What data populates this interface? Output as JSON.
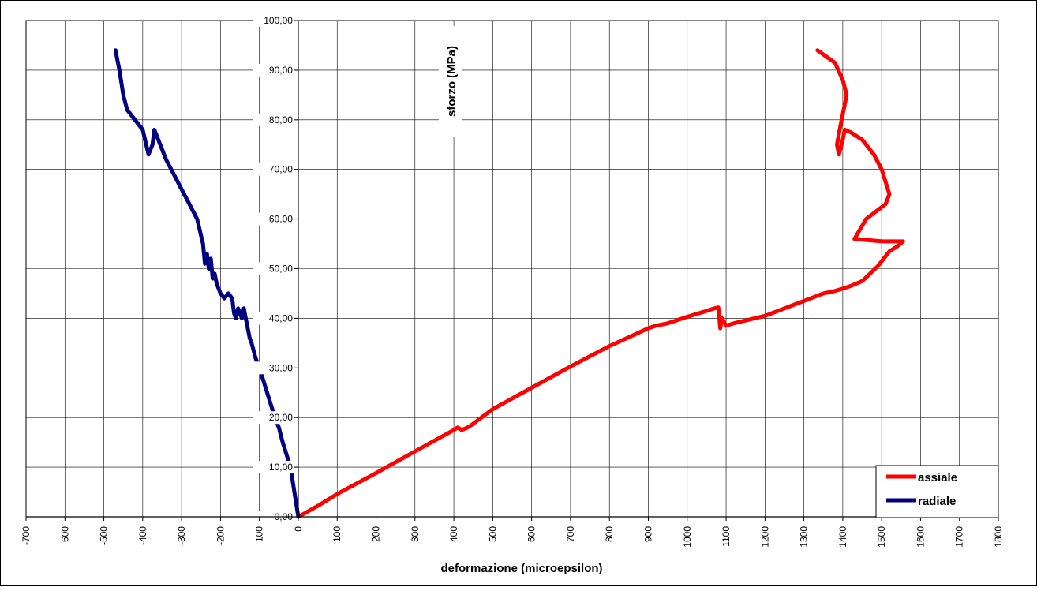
{
  "chart_data": {
    "type": "scatter",
    "xlabel": "deformazione (microepsilon)",
    "ylabel": "sforzo (MPa)",
    "xlim": [
      -700,
      1800
    ],
    "ylim": [
      0,
      100
    ],
    "x_ticks": [
      -700,
      -600,
      -500,
      -400,
      -300,
      -200,
      -100,
      0,
      100,
      200,
      300,
      400,
      500,
      600,
      700,
      800,
      900,
      1000,
      1100,
      1200,
      1300,
      1400,
      1500,
      1600,
      1700,
      1800
    ],
    "x_tick_labels": [
      "-700",
      "-600",
      "-500",
      "-400",
      "-300",
      "-200",
      "-100",
      "0",
      "100",
      "200",
      "300",
      "400",
      "500",
      "600",
      "700",
      "800",
      "900",
      "1000",
      "1100",
      "1200",
      "1300",
      "1400",
      "1500",
      "1600",
      "1700",
      "1800"
    ],
    "y_ticks": [
      0,
      10,
      20,
      30,
      40,
      50,
      60,
      70,
      80,
      90,
      100
    ],
    "y_tick_labels": [
      "0,00",
      "10,00",
      "20,00",
      "30,00",
      "40,00",
      "50,00",
      "60,00",
      "70,00",
      "80,00",
      "90,00",
      "100,00"
    ],
    "grid": true,
    "legend_position": "bottom-right",
    "series": [
      {
        "name": "assiale",
        "color": "#ff0000",
        "x": [
          0,
          50,
          100,
          200,
          300,
          400,
          410,
          420,
          430,
          440,
          500,
          600,
          700,
          800,
          900,
          920,
          950,
          1000,
          1050,
          1070,
          1080,
          1085,
          1090,
          1100,
          1120,
          1200,
          1300,
          1350,
          1380,
          1400,
          1420,
          1450,
          1470,
          1490,
          1500,
          1520,
          1540,
          1555,
          1500,
          1430,
          1460,
          1510,
          1520,
          1500,
          1480,
          1450,
          1420,
          1405,
          1400,
          1390,
          1385,
          1392,
          1410,
          1400,
          1380,
          1335
        ],
        "y": [
          0,
          2.2,
          4.6,
          8.8,
          13.2,
          17.5,
          18.0,
          17.5,
          17.8,
          18.2,
          21.7,
          26.0,
          30.3,
          34.4,
          38.0,
          38.5,
          39.0,
          40.3,
          41.5,
          42.0,
          42.2,
          38.0,
          40.0,
          38.5,
          39.0,
          40.5,
          43.5,
          45.0,
          45.5,
          46.0,
          46.5,
          47.5,
          49.0,
          50.5,
          51.5,
          53.5,
          54.5,
          55.5,
          55.5,
          56.0,
          60.0,
          63.0,
          65.0,
          70.0,
          73.0,
          76.0,
          77.5,
          78.0,
          76.0,
          73.0,
          75.0,
          78.0,
          85.0,
          88.0,
          91.5,
          94.0
        ]
      },
      {
        "name": "radiale",
        "color": "#000080",
        "x": [
          0,
          -10,
          -20,
          -40,
          -50,
          -60,
          -80,
          -100,
          -110,
          -120,
          -125,
          -130,
          -135,
          -140,
          -145,
          -150,
          -155,
          -160,
          -165,
          -170,
          -180,
          -190,
          -200,
          -210,
          -215,
          -220,
          -225,
          -230,
          -235,
          -240,
          -245,
          -260,
          -280,
          -300,
          -320,
          -340,
          -355,
          -365,
          -370,
          -375,
          -385,
          -400,
          -420,
          -440,
          -450,
          -460,
          -470
        ],
        "y": [
          0,
          5,
          10,
          15,
          18,
          20,
          25,
          30,
          32,
          35,
          36,
          38,
          40,
          42,
          40,
          41,
          42,
          40,
          41,
          44,
          45,
          44,
          45,
          47,
          49,
          48,
          52,
          50,
          53,
          51,
          55,
          60,
          63,
          66,
          69,
          72,
          75,
          77,
          78,
          75,
          73,
          78,
          80,
          82,
          85,
          90,
          94
        ]
      }
    ]
  }
}
